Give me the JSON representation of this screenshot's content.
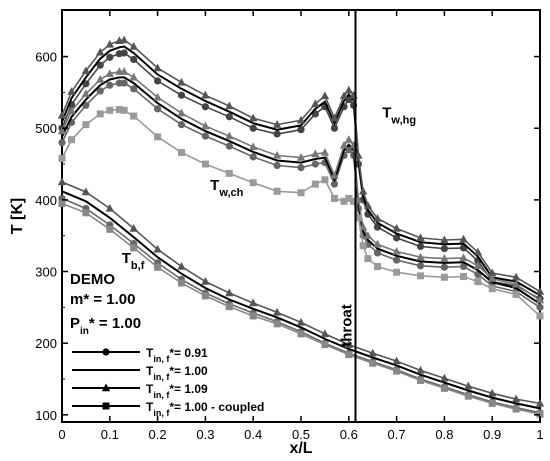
{
  "chart_data": {
    "type": "line",
    "xlabel": "x/L",
    "ylabel": "T [K]",
    "xlim": [
      0,
      1
    ],
    "ylim": [
      90,
      665
    ],
    "xticks": [
      "0",
      "0.1",
      "0.2",
      "0.3",
      "0.4",
      "0.5",
      "0.6",
      "0.7",
      "0.8",
      "0.9",
      "1"
    ],
    "yticks": [
      "100",
      "200",
      "300",
      "400",
      "500",
      "600"
    ],
    "grid": false,
    "throat": {
      "x": 0.614,
      "label": "throat"
    },
    "info": {
      "title": "DEMO",
      "mass": "m* = 1.00",
      "pressure": "P* = 1.00",
      "pressure_base": "P",
      "pressure_sub": "in",
      "pressure_rest": "* = 1.00"
    },
    "annotations": [
      {
        "base": "T",
        "sub": "w,hg",
        "x": 0.67,
        "y": 515
      },
      {
        "base": "T",
        "sub": "w,ch",
        "x": 0.31,
        "y": 414
      },
      {
        "base": "T",
        "sub": "b,f",
        "x": 0.125,
        "y": 312
      }
    ],
    "legend": {
      "position": "bottom-left",
      "entries": [
        {
          "base": "T",
          "sub": "in, f",
          "rest": "*= 0.91",
          "marker": "circle",
          "color": "#000000"
        },
        {
          "base": "T",
          "sub": "in, f",
          "rest": "*= 1.00",
          "marker": "none",
          "color": "#000000"
        },
        {
          "base": "T",
          "sub": "in, f",
          "rest": "*= 1.09",
          "marker": "triangle",
          "color": "#000000"
        },
        {
          "base": "T",
          "sub": "in, f",
          "rest": "*= 1.00 - coupled",
          "marker": "square",
          "color": "#000000"
        }
      ]
    },
    "series": [
      {
        "group": "wall-hot-gas",
        "case": "0.91",
        "marker": "circle",
        "color": "#444444",
        "x": [
          0,
          0.02,
          0.05,
          0.08,
          0.1,
          0.12,
          0.13,
          0.15,
          0.2,
          0.25,
          0.3,
          0.35,
          0.4,
          0.45,
          0.5,
          0.53,
          0.55,
          0.57,
          0.59,
          0.6,
          0.61,
          0.62,
          0.63,
          0.64,
          0.66,
          0.7,
          0.75,
          0.8,
          0.84,
          0.87,
          0.9,
          0.95,
          1.0
        ],
        "y": [
          500,
          533,
          562,
          588,
          599,
          604,
          605,
          596,
          566,
          546,
          530,
          516,
          500,
          492,
          498,
          520,
          530,
          500,
          530,
          540,
          532,
          450,
          400,
          380,
          362,
          347,
          335,
          332,
          333,
          315,
          286,
          280,
          262
        ]
      },
      {
        "group": "wall-hot-gas",
        "case": "1.00",
        "marker": "none",
        "color": "#000000",
        "x": [
          0,
          0.02,
          0.05,
          0.08,
          0.1,
          0.12,
          0.13,
          0.15,
          0.2,
          0.25,
          0.3,
          0.35,
          0.4,
          0.45,
          0.5,
          0.53,
          0.55,
          0.57,
          0.59,
          0.6,
          0.61,
          0.62,
          0.63,
          0.64,
          0.66,
          0.7,
          0.75,
          0.8,
          0.84,
          0.87,
          0.9,
          0.95,
          1.0
        ],
        "y": [
          509,
          542,
          571,
          597,
          608,
          613,
          614,
          605,
          575,
          555,
          538,
          523,
          507,
          498,
          504,
          527,
          537,
          507,
          538,
          547,
          539,
          456,
          406,
          386,
          368,
          353,
          341,
          338,
          339,
          321,
          292,
          286,
          267
        ]
      },
      {
        "group": "wall-hot-gas",
        "case": "1.09",
        "marker": "triangle",
        "color": "#555555",
        "x": [
          0,
          0.02,
          0.05,
          0.08,
          0.1,
          0.12,
          0.13,
          0.15,
          0.2,
          0.25,
          0.3,
          0.35,
          0.4,
          0.45,
          0.5,
          0.53,
          0.55,
          0.57,
          0.59,
          0.6,
          0.61,
          0.62,
          0.63,
          0.64,
          0.66,
          0.7,
          0.75,
          0.8,
          0.84,
          0.87,
          0.9,
          0.95,
          1.0
        ],
        "y": [
          518,
          551,
          580,
          606,
          617,
          622,
          623,
          614,
          584,
          564,
          546,
          531,
          514,
          505,
          511,
          534,
          545,
          514,
          545,
          553,
          546,
          462,
          412,
          392,
          374,
          360,
          347,
          344,
          345,
          327,
          298,
          292,
          272
        ]
      },
      {
        "group": "wall-coolant",
        "case": "0.91",
        "marker": "circle",
        "color": "#666666",
        "x": [
          0,
          0.02,
          0.05,
          0.08,
          0.1,
          0.12,
          0.13,
          0.15,
          0.2,
          0.25,
          0.3,
          0.35,
          0.4,
          0.45,
          0.5,
          0.53,
          0.55,
          0.57,
          0.59,
          0.6,
          0.61,
          0.62,
          0.63,
          0.64,
          0.66,
          0.7,
          0.75,
          0.8,
          0.84,
          0.87,
          0.9,
          0.95,
          1.0
        ],
        "y": [
          480,
          508,
          532,
          552,
          560,
          563,
          563,
          555,
          527,
          505,
          489,
          475,
          460,
          448,
          445,
          450,
          452,
          422,
          462,
          470,
          462,
          388,
          350,
          338,
          326,
          316,
          308,
          306,
          307,
          296,
          280,
          272,
          250
        ]
      },
      {
        "group": "wall-coolant",
        "case": "1.00",
        "marker": "none",
        "color": "#000000",
        "x": [
          0,
          0.02,
          0.05,
          0.08,
          0.1,
          0.12,
          0.13,
          0.15,
          0.2,
          0.25,
          0.3,
          0.35,
          0.4,
          0.45,
          0.5,
          0.53,
          0.55,
          0.57,
          0.59,
          0.6,
          0.61,
          0.62,
          0.63,
          0.64,
          0.66,
          0.7,
          0.75,
          0.8,
          0.84,
          0.87,
          0.9,
          0.95,
          1.0
        ],
        "y": [
          488,
          516,
          540,
          560,
          568,
          571,
          571,
          563,
          535,
          513,
          496,
          482,
          467,
          455,
          452,
          457,
          459,
          428,
          469,
          477,
          469,
          394,
          356,
          344,
          332,
          322,
          314,
          312,
          313,
          302,
          285,
          277,
          255
        ]
      },
      {
        "group": "wall-coolant",
        "case": "1.09",
        "marker": "triangle",
        "color": "#777777",
        "x": [
          0,
          0.02,
          0.05,
          0.08,
          0.1,
          0.12,
          0.13,
          0.15,
          0.2,
          0.25,
          0.3,
          0.35,
          0.4,
          0.45,
          0.5,
          0.53,
          0.55,
          0.57,
          0.59,
          0.6,
          0.61,
          0.62,
          0.63,
          0.64,
          0.66,
          0.7,
          0.75,
          0.8,
          0.84,
          0.87,
          0.9,
          0.95,
          1.0
        ],
        "y": [
          496,
          524,
          548,
          568,
          576,
          579,
          579,
          571,
          543,
          521,
          503,
          489,
          474,
          462,
          459,
          464,
          466,
          434,
          476,
          484,
          476,
          400,
          362,
          350,
          338,
          328,
          320,
          318,
          319,
          308,
          290,
          282,
          260
        ]
      },
      {
        "group": "wall-coolant",
        "case": "1.00 - coupled",
        "marker": "square",
        "color": "#9a9a9a",
        "x": [
          0,
          0.02,
          0.05,
          0.08,
          0.1,
          0.12,
          0.13,
          0.15,
          0.2,
          0.25,
          0.3,
          0.35,
          0.4,
          0.45,
          0.5,
          0.53,
          0.55,
          0.57,
          0.59,
          0.6,
          0.61,
          0.62,
          0.63,
          0.64,
          0.66,
          0.7,
          0.75,
          0.8,
          0.84,
          0.87,
          0.9,
          0.95,
          1.0
        ],
        "y": [
          458,
          484,
          505,
          520,
          525,
          526,
          525,
          517,
          488,
          466,
          450,
          437,
          424,
          412,
          410,
          422,
          428,
          402,
          398,
          402,
          398,
          375,
          336,
          318,
          307,
          299,
          294,
          292,
          293,
          286,
          276,
          268,
          238
        ]
      },
      {
        "group": "bulk-fluid",
        "case": "0.91",
        "marker": "circle",
        "color": "#666666",
        "x": [
          0,
          0.05,
          0.1,
          0.15,
          0.2,
          0.25,
          0.3,
          0.35,
          0.4,
          0.45,
          0.5,
          0.55,
          0.6,
          0.65,
          0.7,
          0.75,
          0.8,
          0.85,
          0.9,
          0.95,
          1.0
        ],
        "y": [
          402,
          388,
          365,
          339,
          312,
          289,
          270,
          255,
          242,
          230,
          216,
          200,
          186,
          174,
          163,
          150,
          139,
          128,
          118,
          110,
          103
        ]
      },
      {
        "group": "bulk-fluid",
        "case": "1.00",
        "marker": "none",
        "color": "#000000",
        "x": [
          0,
          0.05,
          0.1,
          0.15,
          0.2,
          0.25,
          0.3,
          0.35,
          0.4,
          0.45,
          0.5,
          0.55,
          0.6,
          0.65,
          0.7,
          0.75,
          0.8,
          0.85,
          0.9,
          0.95,
          1.0
        ],
        "y": [
          412,
          398,
          375,
          348,
          320,
          297,
          277,
          261,
          248,
          236,
          222,
          206,
          192,
          180,
          169,
          156,
          145,
          134,
          124,
          116,
          109
        ]
      },
      {
        "group": "bulk-fluid",
        "case": "1.09",
        "marker": "triangle",
        "color": "#555555",
        "x": [
          0,
          0.05,
          0.1,
          0.15,
          0.2,
          0.25,
          0.3,
          0.35,
          0.4,
          0.45,
          0.5,
          0.55,
          0.6,
          0.65,
          0.7,
          0.75,
          0.8,
          0.85,
          0.9,
          0.95,
          1.0
        ],
        "y": [
          425,
          411,
          388,
          360,
          331,
          307,
          286,
          270,
          256,
          243,
          229,
          213,
          198,
          186,
          175,
          162,
          151,
          140,
          130,
          122,
          116
        ]
      },
      {
        "group": "bulk-fluid",
        "case": "1.00 - coupled",
        "marker": "square",
        "color": "#888888",
        "x": [
          0,
          0.05,
          0.1,
          0.15,
          0.2,
          0.25,
          0.3,
          0.35,
          0.4,
          0.45,
          0.5,
          0.55,
          0.6,
          0.65,
          0.7,
          0.75,
          0.8,
          0.85,
          0.9,
          0.95,
          1.0
        ],
        "y": [
          395,
          382,
          359,
          333,
          306,
          284,
          266,
          251,
          238,
          227,
          213,
          198,
          184,
          172,
          161,
          148,
          137,
          126,
          116,
          108,
          101
        ]
      }
    ]
  }
}
